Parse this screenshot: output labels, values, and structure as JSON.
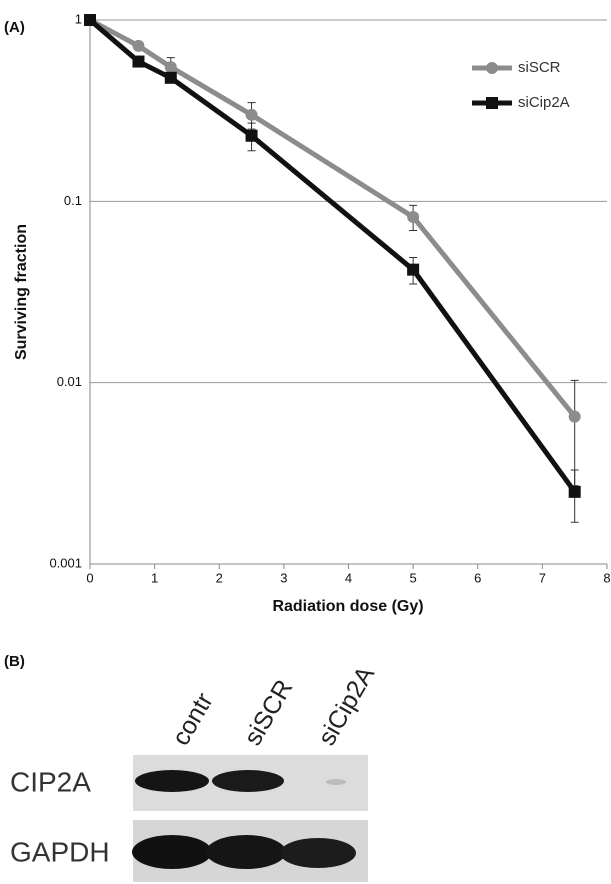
{
  "chart_data": {
    "type": "line",
    "x_label": "Radiation dose (Gy)",
    "y_label": "Surviving fraction",
    "x": [
      0,
      0.75,
      1.25,
      2.5,
      5,
      7.5
    ],
    "series": [
      {
        "name": "siSCR",
        "color": "#8c8c8c",
        "marker": "circle",
        "values": [
          1,
          0.72,
          0.55,
          0.3,
          0.082,
          0.0065
        ],
        "errors": [
          null,
          null,
          0.07,
          0.05,
          0.013,
          0.0038
        ]
      },
      {
        "name": "siCip2A",
        "color": "#111111",
        "marker": "square",
        "values": [
          1,
          0.59,
          0.48,
          0.23,
          0.042,
          0.0025
        ],
        "errors": [
          null,
          null,
          null,
          0.04,
          0.007,
          0.0008
        ]
      }
    ],
    "xlim": [
      0,
      8
    ],
    "xticks": [
      0,
      1,
      2,
      3,
      4,
      5,
      6,
      7,
      8
    ],
    "ylim": [
      0.001,
      1
    ],
    "yticks": [
      0.001,
      0.01,
      0.1,
      1
    ],
    "log_y": true,
    "grid": true,
    "legend": "upper right"
  },
  "panel_labels": [
    "(A)",
    "(B)"
  ],
  "blot": {
    "lanes": [
      "contr",
      "siSCR",
      "siCip2A"
    ],
    "rows": [
      "CIP2A",
      "GAPDH"
    ]
  }
}
